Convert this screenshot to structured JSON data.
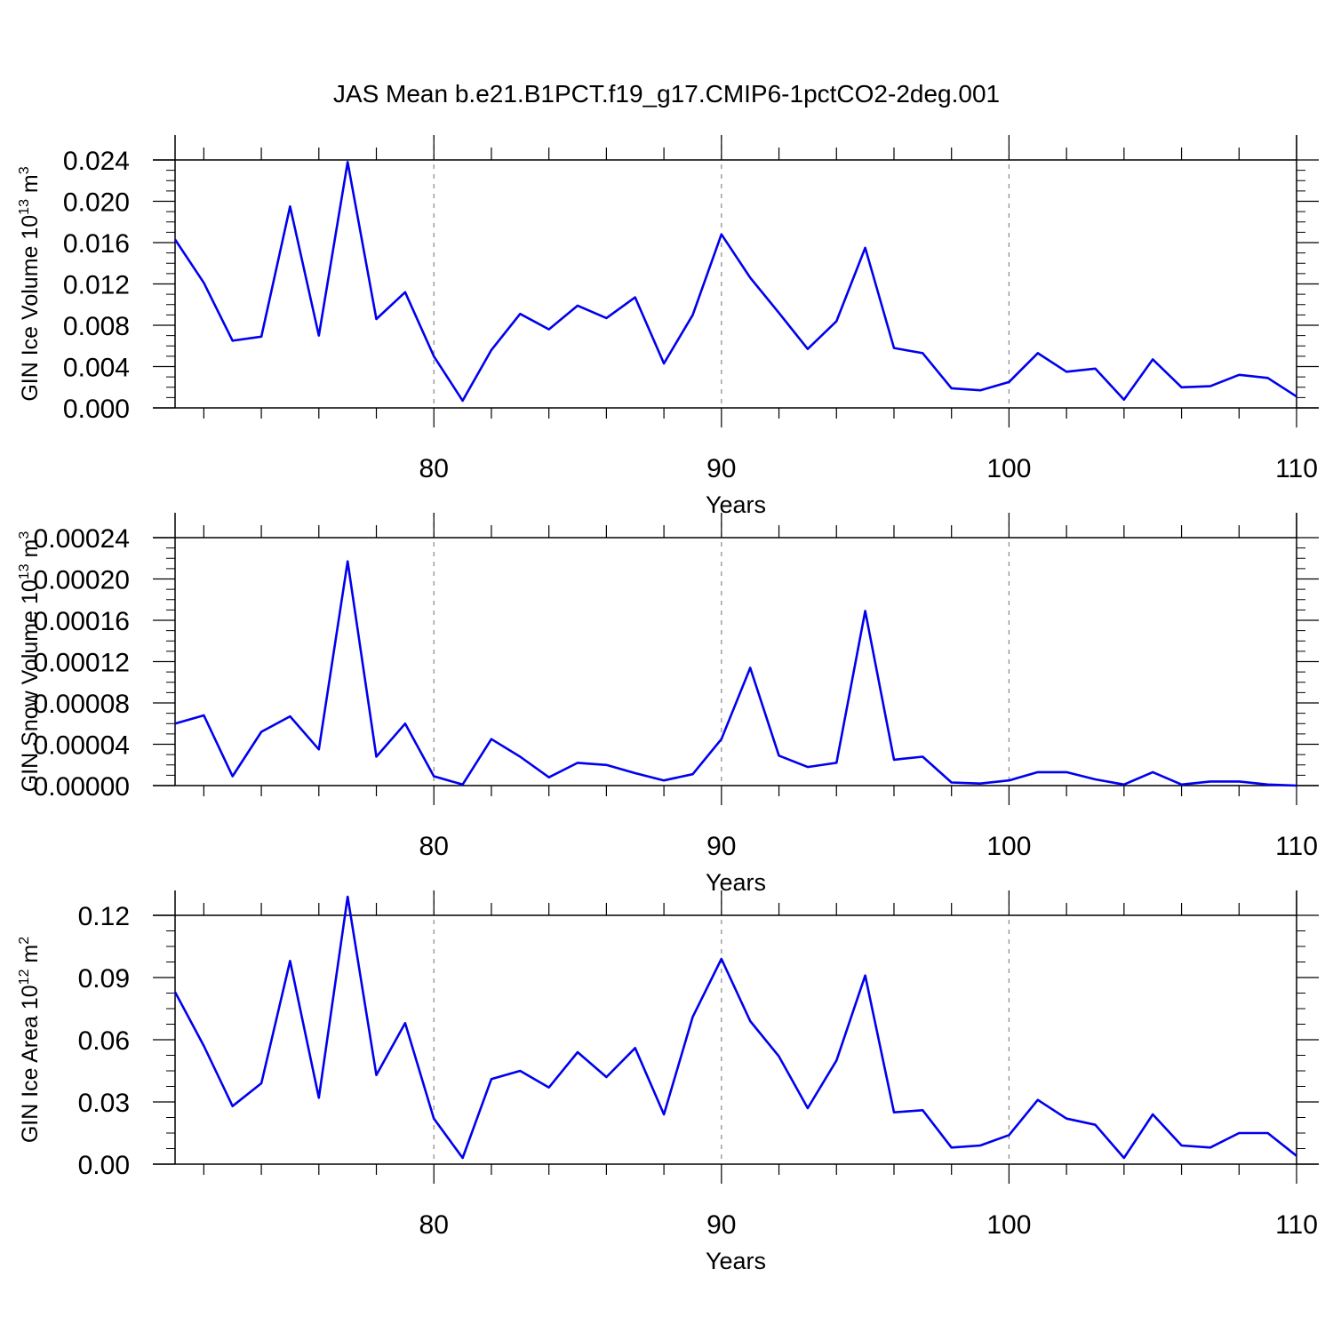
{
  "title": "JAS Mean b.e21.B1PCT.f19_g17.CMIP6-1pctCO2-2deg.001",
  "colors": {
    "line": "#0000ee",
    "axis": "#000000",
    "grid": "#888888"
  },
  "chart_data": [
    {
      "type": "line",
      "ylabel": "GIN Ice Volume 10",
      "ylabel_sup": "13",
      "ylabel_unit": " m",
      "ylabel_unit_sup": "3",
      "xlabel": "Years",
      "xlim": [
        71,
        110
      ],
      "ylim": [
        0,
        0.024
      ],
      "yticks": [
        0,
        0.004,
        0.008,
        0.012,
        0.016,
        0.02,
        0.024
      ],
      "ytick_labels": [
        "0.000",
        "0.004",
        "0.008",
        "0.012",
        "0.016",
        "0.020",
        "0.024"
      ],
      "xticks": [
        80,
        90,
        100,
        110
      ],
      "xtick_labels": [
        "80",
        "90",
        "100",
        "110"
      ],
      "grid_x": [
        80,
        90,
        100
      ],
      "x": [
        71,
        72,
        73,
        74,
        75,
        76,
        77,
        78,
        79,
        80,
        81,
        82,
        83,
        84,
        85,
        86,
        87,
        88,
        89,
        90,
        91,
        92,
        93,
        94,
        95,
        96,
        97,
        98,
        99,
        100,
        101,
        102,
        103,
        104,
        105,
        106,
        107,
        108,
        109,
        110
      ],
      "values": [
        0.0163,
        0.0121,
        0.0065,
        0.0069,
        0.0195,
        0.007,
        0.0238,
        0.0086,
        0.0112,
        0.005,
        0.0007,
        0.0056,
        0.0091,
        0.0076,
        0.0099,
        0.0087,
        0.0107,
        0.0043,
        0.009,
        0.0168,
        0.0126,
        0.0092,
        0.0057,
        0.0084,
        0.0155,
        0.0058,
        0.0053,
        0.0019,
        0.0017,
        0.0025,
        0.0053,
        0.0035,
        0.0038,
        0.0008,
        0.0047,
        0.002,
        0.0021,
        0.0032,
        0.0029,
        0.0011
      ]
    },
    {
      "type": "line",
      "ylabel": "GIN Snow Volume 10",
      "ylabel_sup": "13",
      "ylabel_unit": " m",
      "ylabel_unit_sup": "3",
      "xlabel": "Years",
      "xlim": [
        71,
        110
      ],
      "ylim": [
        0,
        0.00024
      ],
      "yticks": [
        0,
        4e-05,
        8e-05,
        0.00012,
        0.00016,
        0.0002,
        0.00024
      ],
      "ytick_labels": [
        "0.00000",
        "0.00004",
        "0.00008",
        "0.00012",
        "0.00016",
        "0.00020",
        "0.00024"
      ],
      "xticks": [
        80,
        90,
        100,
        110
      ],
      "xtick_labels": [
        "80",
        "90",
        "100",
        "110"
      ],
      "grid_x": [
        80,
        90,
        100
      ],
      "x": [
        71,
        72,
        73,
        74,
        75,
        76,
        77,
        78,
        79,
        80,
        81,
        82,
        83,
        84,
        85,
        86,
        87,
        88,
        89,
        90,
        91,
        92,
        93,
        94,
        95,
        96,
        97,
        98,
        99,
        100,
        101,
        102,
        103,
        104,
        105,
        106,
        107,
        108,
        109,
        110
      ],
      "values": [
        6e-05,
        6.8e-05,
        9e-06,
        5.2e-05,
        6.7e-05,
        3.5e-05,
        0.000217,
        2.8e-05,
        6e-05,
        9e-06,
        1e-06,
        4.5e-05,
        2.8e-05,
        8e-06,
        2.2e-05,
        2e-05,
        1.2e-05,
        5e-06,
        1.1e-05,
        4.5e-05,
        0.000114,
        2.9e-05,
        1.8e-05,
        2.2e-05,
        0.000169,
        2.5e-05,
        2.8e-05,
        3e-06,
        2e-06,
        5e-06,
        1.3e-05,
        1.3e-05,
        6e-06,
        1e-06,
        1.3e-05,
        1e-06,
        4e-06,
        4e-06,
        1e-06,
        0.0
      ]
    },
    {
      "type": "line",
      "ylabel": "GIN Ice Area 10",
      "ylabel_sup": "12",
      "ylabel_unit": " m",
      "ylabel_unit_sup": "2",
      "xlabel": "Years",
      "xlim": [
        71,
        110
      ],
      "ylim": [
        0,
        0.14
      ],
      "yticks": [
        0,
        0.03,
        0.06,
        0.09,
        0.12
      ],
      "ytick_labels": [
        "0.00",
        "0.03",
        "0.06",
        "0.09",
        "0.12"
      ],
      "xticks": [
        80,
        90,
        100,
        110
      ],
      "xtick_labels": [
        "80",
        "90",
        "100",
        "110"
      ],
      "grid_x": [
        80,
        90,
        100
      ],
      "x": [
        71,
        72,
        73,
        74,
        75,
        76,
        77,
        78,
        79,
        80,
        81,
        82,
        83,
        84,
        85,
        86,
        87,
        88,
        89,
        90,
        91,
        92,
        93,
        94,
        95,
        96,
        97,
        98,
        99,
        100,
        101,
        102,
        103,
        104,
        105,
        106,
        107,
        108,
        109,
        110
      ],
      "values": [
        0.083,
        0.057,
        0.028,
        0.039,
        0.098,
        0.032,
        0.129,
        0.043,
        0.068,
        0.022,
        0.003,
        0.041,
        0.045,
        0.037,
        0.054,
        0.042,
        0.056,
        0.024,
        0.071,
        0.099,
        0.069,
        0.052,
        0.027,
        0.05,
        0.091,
        0.025,
        0.026,
        0.008,
        0.009,
        0.014,
        0.031,
        0.022,
        0.019,
        0.003,
        0.024,
        0.009,
        0.008,
        0.015,
        0.015,
        0.004
      ]
    }
  ]
}
